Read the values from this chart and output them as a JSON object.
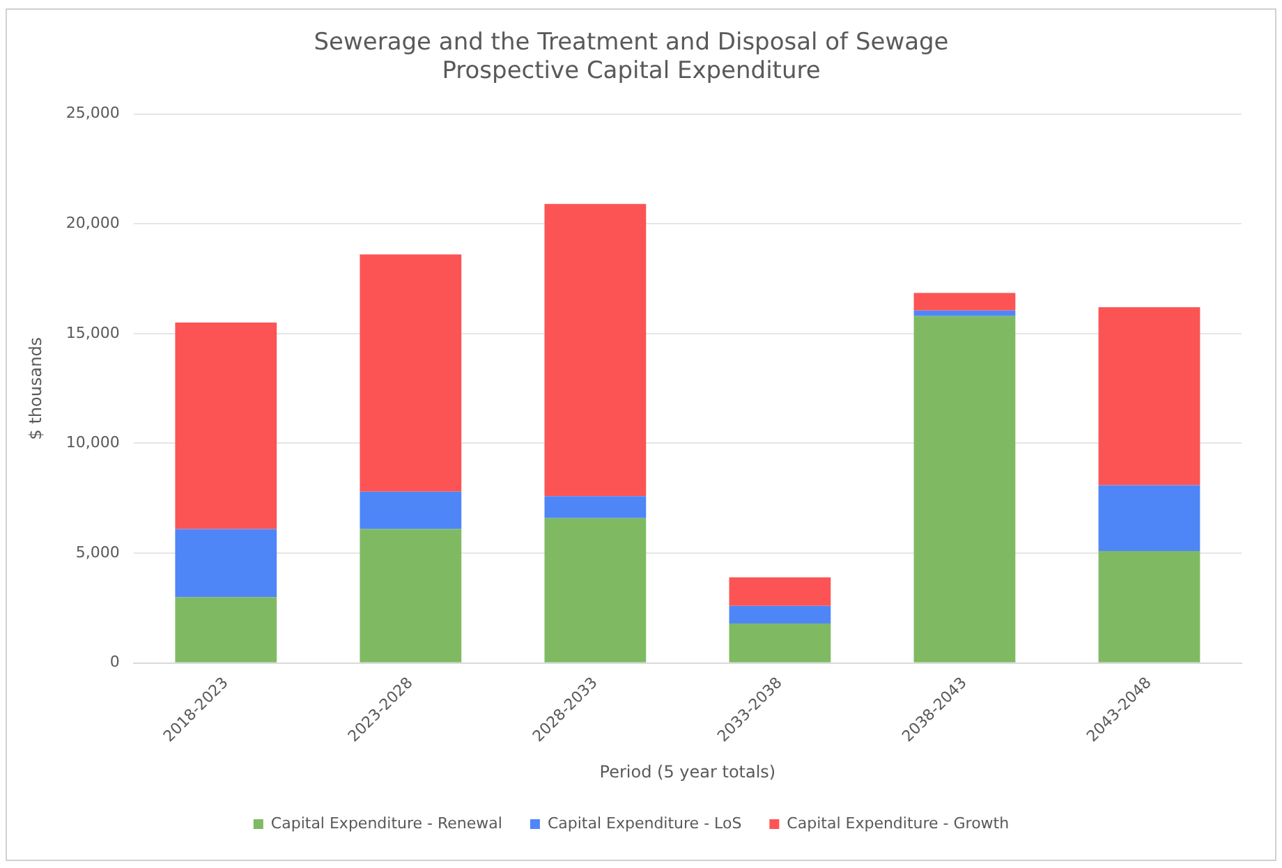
{
  "chart_data": {
    "type": "bar",
    "title": [
      "Sewerage and the Treatment and Disposal of Sewage",
      "Prospective Capital Expenditure"
    ],
    "xlabel": "Period (5 year totals)",
    "ylabel": "$ thousands",
    "categories": [
      "2018-2023",
      "2023-2028",
      "2028-2033",
      "2033-2038",
      "2038-2043",
      "2043-2048"
    ],
    "stacked": true,
    "series": [
      {
        "name": "Capital Expenditure - Renewal",
        "color": "#7fba63",
        "values": [
          3000,
          6100,
          6600,
          1800,
          15800,
          5100
        ]
      },
      {
        "name": "Capital Expenditure - LoS",
        "color": "#4f86f7",
        "values": [
          3100,
          1700,
          1000,
          800,
          250,
          3000
        ]
      },
      {
        "name": "Capital Expenditure - Growth",
        "color": "#fc5454",
        "values": [
          9400,
          10800,
          13300,
          1300,
          800,
          8100
        ]
      }
    ],
    "ylim": [
      0,
      25000
    ],
    "yticks": [
      {
        "value": 0,
        "label": "0"
      },
      {
        "value": 5000,
        "label": "5,000"
      },
      {
        "value": 10000,
        "label": "10,000"
      },
      {
        "value": 15000,
        "label": "15,000"
      },
      {
        "value": 20000,
        "label": "20,000"
      },
      {
        "value": 25000,
        "label": "25,000"
      }
    ],
    "grid": "y",
    "legend": "bottom"
  }
}
